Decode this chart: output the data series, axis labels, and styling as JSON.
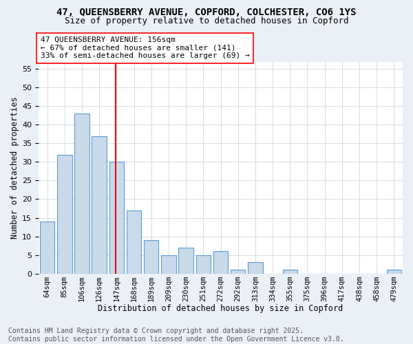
{
  "title1": "47, QUEENSBERRY AVENUE, COPFORD, COLCHESTER, CO6 1YS",
  "title2": "Size of property relative to detached houses in Copford",
  "xlabel": "Distribution of detached houses by size in Copford",
  "ylabel": "Number of detached properties",
  "categories": [
    "64sqm",
    "85sqm",
    "106sqm",
    "126sqm",
    "147sqm",
    "168sqm",
    "189sqm",
    "209sqm",
    "230sqm",
    "251sqm",
    "272sqm",
    "292sqm",
    "313sqm",
    "334sqm",
    "355sqm",
    "375sqm",
    "396sqm",
    "417sqm",
    "438sqm",
    "458sqm",
    "479sqm"
  ],
  "values": [
    14,
    32,
    43,
    37,
    30,
    17,
    9,
    5,
    7,
    5,
    6,
    1,
    3,
    0,
    1,
    0,
    0,
    0,
    0,
    0,
    1
  ],
  "bar_color": "#c9daea",
  "bar_edge_color": "#5b9bd5",
  "vline_pos": 3.93,
  "vline_color": "red",
  "annotation_text": "47 QUEENSBERRY AVENUE: 156sqm\n← 67% of detached houses are smaller (141)\n33% of semi-detached houses are larger (69) →",
  "ylim_max": 57,
  "yticks": [
    0,
    5,
    10,
    15,
    20,
    25,
    30,
    35,
    40,
    45,
    50,
    55
  ],
  "bg_color": "#eaf0f6",
  "plot_bg_color": "#ffffff",
  "grid_color": "#c8d0d8",
  "footer": "Contains HM Land Registry data © Crown copyright and database right 2025.\nContains public sector information licensed under the Open Government Licence v3.0."
}
